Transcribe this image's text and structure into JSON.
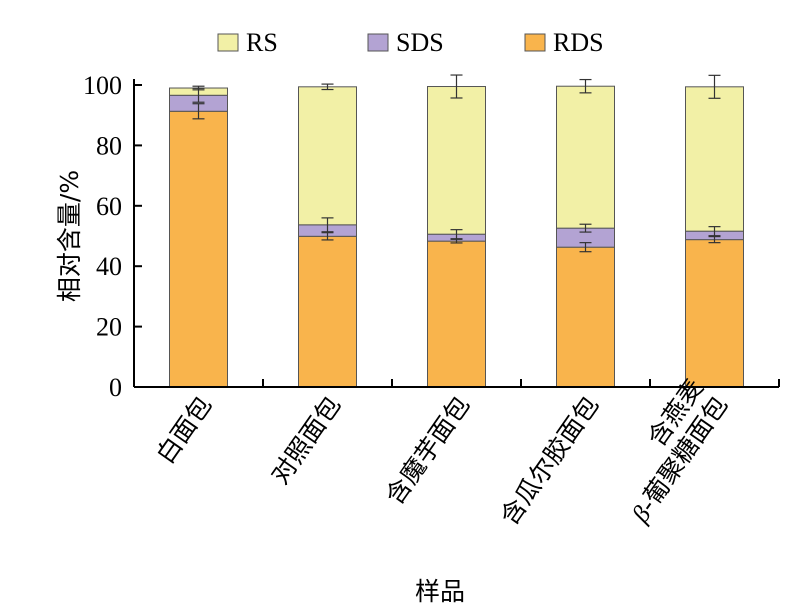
{
  "chart_data": {
    "type": "bar",
    "stacked": true,
    "categories": [
      [
        "白面包"
      ],
      [
        "对照面包"
      ],
      [
        "含魔芋面包"
      ],
      [
        "含瓜尔胶面包"
      ],
      [
        "含燕麦",
        "β-葡聚糖面包"
      ]
    ],
    "series": [
      {
        "name": "RDS",
        "color": "#F9B44C",
        "values": [
          91.3,
          49.9,
          48.3,
          46.3,
          48.8
        ],
        "errors": [
          2.5,
          1.2,
          0.6,
          1.5,
          1.0
        ]
      },
      {
        "name": "SDS",
        "color": "#B3A3D3",
        "values": [
          5.3,
          3.8,
          2.3,
          6.3,
          2.8
        ],
        "errors": [
          2.3,
          2.3,
          1.5,
          1.3,
          1.5
        ]
      },
      {
        "name": "RS",
        "color": "#F2F0A6",
        "values": [
          2.4,
          45.7,
          48.9,
          47.0,
          47.8
        ],
        "errors": [
          0.6,
          0.9,
          3.8,
          2.2,
          3.8
        ]
      }
    ],
    "legend_order": [
      "RS",
      "SDS",
      "RDS"
    ],
    "legend_position": "top",
    "xlabel": "样品",
    "ylabel": "相对含量/%",
    "yticks": [
      0,
      20,
      40,
      60,
      80,
      100
    ],
    "ylim": [
      0,
      100
    ],
    "grid": false
  }
}
